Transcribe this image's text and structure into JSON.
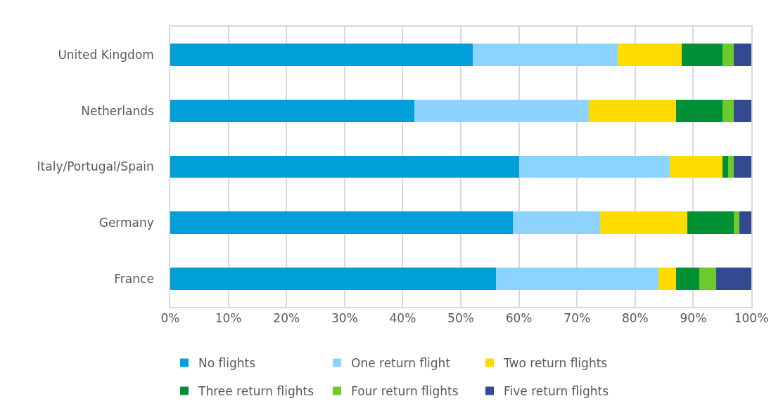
{
  "chart_data": {
    "type": "bar",
    "orientation": "horizontal",
    "stacked": true,
    "categories": [
      "United Kingdom",
      "Netherlands",
      "Italy/Portugal/Spain",
      "Germany",
      "France"
    ],
    "series": [
      {
        "name": "No flights",
        "color": "#009fda",
        "values": [
          52,
          42,
          60,
          59,
          56
        ]
      },
      {
        "name": "One return flight",
        "color": "#8dd3ff",
        "values": [
          25,
          30,
          26,
          15,
          28
        ]
      },
      {
        "name": "Two return flights",
        "color": "#ffdc00",
        "values": [
          11,
          15,
          9,
          15,
          3
        ]
      },
      {
        "name": "Three return flights",
        "color": "#009035",
        "values": [
          7,
          8,
          1,
          8,
          4
        ]
      },
      {
        "name": "Four return flights",
        "color": "#6dc92e",
        "values": [
          2,
          2,
          1,
          1,
          3
        ]
      },
      {
        "name": "Five return flights",
        "color": "#334a91",
        "values": [
          3,
          3,
          3,
          2,
          6
        ]
      }
    ],
    "xlim": [
      0,
      100
    ],
    "xticks": [
      {
        "value": 0,
        "label": "0%"
      },
      {
        "value": 10,
        "label": "10%"
      },
      {
        "value": 20,
        "label": "20%"
      },
      {
        "value": 30,
        "label": "30%"
      },
      {
        "value": 40,
        "label": "40%"
      },
      {
        "value": 50,
        "label": "50%"
      },
      {
        "value": 60,
        "label": "60%"
      },
      {
        "value": 70,
        "label": "70%"
      },
      {
        "value": 80,
        "label": "80%"
      },
      {
        "value": 90,
        "label": "90%"
      },
      {
        "value": 100,
        "label": "100%"
      }
    ],
    "grid": "x",
    "legend": "bottom"
  }
}
